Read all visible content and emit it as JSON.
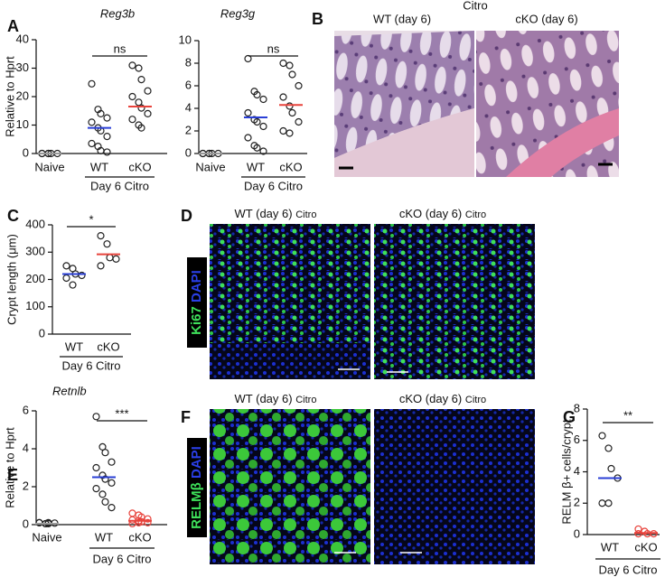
{
  "chart_data": [
    {
      "type": "strip",
      "panel": "A",
      "title": "Reg3b",
      "ylabel": "Relative to Hprt",
      "categories": [
        "Naive",
        "WT",
        "cKO"
      ],
      "group_label": "Day 6 Citro",
      "values": [
        [
          0,
          0,
          0,
          0,
          0,
          0
        ],
        [
          24.5,
          15.5,
          14,
          12.5,
          11,
          9,
          8,
          6,
          3.5,
          2.5,
          1,
          0.5
        ],
        [
          31,
          30,
          26,
          22,
          20,
          18,
          16,
          14,
          12,
          10,
          9
        ]
      ],
      "means": [
        0,
        9,
        16.5
      ],
      "mean_colors": [
        "#999999",
        "#2a3fd6",
        "#e8433c"
      ],
      "point_colors": [
        "#222222",
        "#222222",
        "#222222"
      ],
      "annotation": "ns",
      "ylim": [
        0,
        40
      ],
      "yticks": [
        0,
        10,
        20,
        30,
        40
      ]
    },
    {
      "type": "strip",
      "title": "Reg3g",
      "categories": [
        "Naive",
        "WT",
        "cKO"
      ],
      "group_label": "Day 6 Citro",
      "values": [
        [
          0,
          0,
          0,
          0,
          0,
          0
        ],
        [
          8.4,
          5.5,
          5.2,
          4.8,
          3.6,
          3,
          2.8,
          2.4,
          1.4,
          0.7,
          0.5,
          0.2
        ],
        [
          8,
          7.8,
          7,
          6,
          5,
          4.2,
          3.6,
          2.8,
          2,
          1.8
        ]
      ],
      "means": [
        0,
        3.2,
        4.3
      ],
      "mean_colors": [
        "#999999",
        "#2a3fd6",
        "#e8433c"
      ],
      "point_colors": [
        "#222222",
        "#222222",
        "#222222"
      ],
      "annotation": "ns",
      "ylim": [
        0,
        10
      ],
      "yticks": [
        0,
        2,
        4,
        6,
        8,
        10
      ]
    },
    {
      "type": "strip",
      "panel": "C",
      "ylabel": "Crypt length (μm)",
      "categories": [
        "WT",
        "cKO"
      ],
      "group_label": "Day 6 Citro",
      "values": [
        [
          250,
          240,
          220,
          215,
          205,
          180
        ],
        [
          360,
          330,
          280,
          275,
          250
        ]
      ],
      "means": [
        220,
        292
      ],
      "mean_colors": [
        "#2a3fd6",
        "#e8433c"
      ],
      "point_colors": [
        "#222222",
        "#222222"
      ],
      "annotation": "*",
      "ylim": [
        0,
        400
      ],
      "yticks": [
        0,
        100,
        200,
        300,
        400
      ]
    },
    {
      "type": "strip",
      "panel": "E",
      "title": "Retnlb",
      "ylabel": "Relative to Hprt",
      "categories": [
        "Naive",
        "WT",
        "cKO"
      ],
      "group_label": "Day 6 Citro",
      "values": [
        [
          0.1,
          0.05,
          0.05,
          0.08,
          0.1,
          0.05,
          0.1
        ],
        [
          5.7,
          4.1,
          3.8,
          3.3,
          3,
          2.6,
          2.4,
          2.2,
          1.9,
          1.6,
          1.2,
          0.9
        ],
        [
          0.6,
          0.5,
          0.4,
          0.3,
          0.25,
          0.2,
          0.15,
          0.1,
          0.05,
          0.1
        ]
      ],
      "means": [
        0.05,
        2.5,
        0.2
      ],
      "mean_colors": [
        "#999999",
        "#2a3fd6",
        "#e8433c"
      ],
      "point_colors": [
        "#222222",
        "#222222",
        "#e8433c"
      ],
      "annotation": "***",
      "ylim": [
        0,
        6
      ],
      "yticks": [
        0,
        2,
        4,
        6
      ]
    },
    {
      "type": "strip",
      "panel": "G",
      "ylabel": "RELM β+ cells/crypt",
      "categories": [
        "WT",
        "cKO"
      ],
      "group_label": "Day 6 Citro",
      "values": [
        [
          6.3,
          5.5,
          4.2,
          3.6,
          2,
          2
        ],
        [
          0.35,
          0.2,
          0.05,
          0.05,
          0.05
        ]
      ],
      "means": [
        3.6,
        0.1
      ],
      "mean_colors": [
        "#2a3fd6",
        "#e8433c"
      ],
      "point_colors": [
        "#222222",
        "#e8433c"
      ],
      "annotation": "**",
      "ylim": [
        0,
        8
      ],
      "yticks": [
        0,
        2,
        4,
        6,
        8
      ]
    }
  ],
  "images": {
    "B": {
      "panel": "B",
      "title": "Citro",
      "labels": [
        "WT (day 6)",
        "cKO (day 6)"
      ]
    },
    "D": {
      "panel": "D",
      "labels": [
        "WT (day 6)",
        "cKO (day 6)"
      ],
      "condition": "Citro",
      "stains": [
        "Ki67",
        "DAPI"
      ]
    },
    "F": {
      "panel": "F",
      "labels": [
        "WT (day 6)",
        "cKO (day 6)"
      ],
      "condition": "Citro",
      "stains": [
        "RELMβ",
        "DAPI"
      ]
    }
  }
}
